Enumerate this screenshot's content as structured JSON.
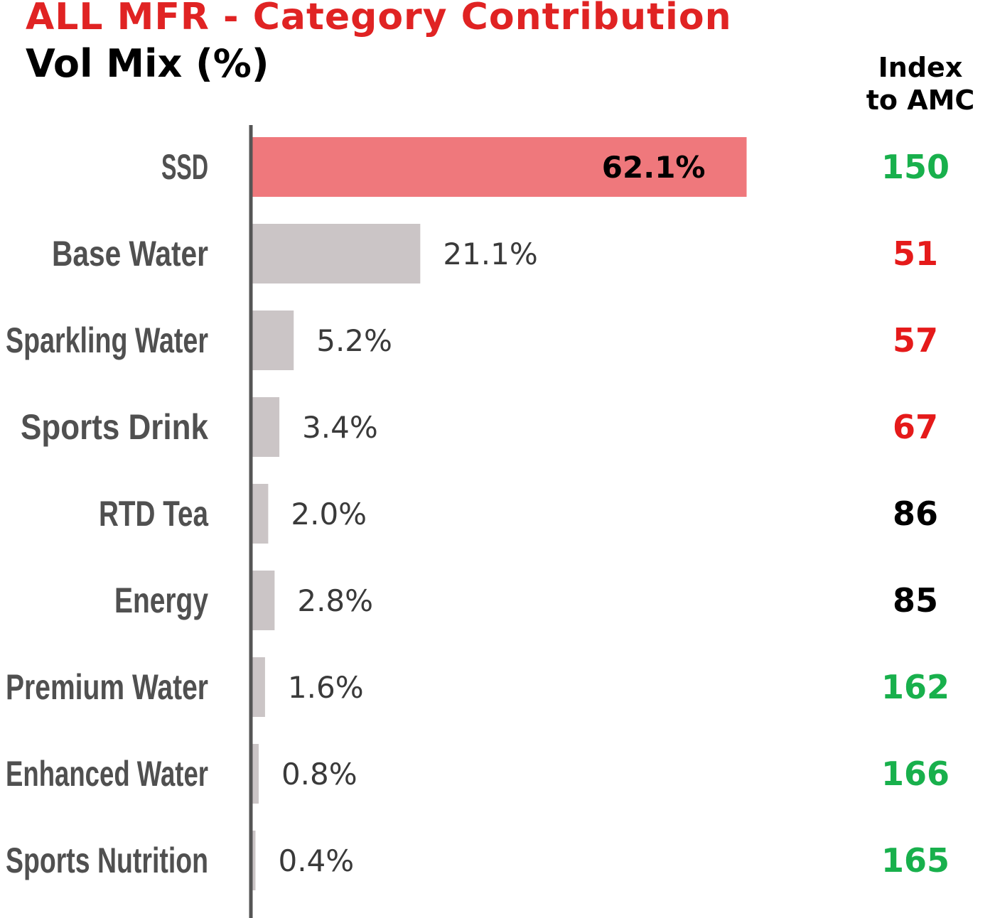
{
  "title": "ALL MFR - Category Contribution",
  "subtitle": "Vol Mix (%)",
  "index_header": {
    "line1": "Index",
    "line2": "to AMC"
  },
  "colors": {
    "highlight_bar": "#ef787c",
    "bar": "#cbc5c6",
    "axis": "#555555",
    "index_high": "#18b04c",
    "index_low": "#e51a1a",
    "index_neutral": "#000000"
  },
  "chart_data": {
    "type": "bar",
    "orientation": "horizontal",
    "title": "ALL MFR - Category Contribution",
    "subtitle": "Vol Mix (%)",
    "categories": [
      "SSD",
      "Base Water",
      "Sparkling Water",
      "Sports Drink",
      "RTD Tea",
      "Energy",
      "Premium Water",
      "Enhanced Water",
      "Sports Nutrition"
    ],
    "values": [
      62.1,
      21.1,
      5.2,
      3.4,
      2.0,
      2.8,
      1.6,
      0.8,
      0.4
    ],
    "value_labels": [
      "62.1%",
      "21.1%",
      "5.2%",
      "3.4%",
      "2.0%",
      "2.8%",
      "1.6%",
      "0.8%",
      "0.4%"
    ],
    "highlight": "SSD",
    "index_to_amc": [
      150,
      51,
      57,
      67,
      86,
      85,
      162,
      166,
      165
    ],
    "index_colors": [
      "green",
      "red",
      "red",
      "red",
      "black",
      "black",
      "green",
      "green",
      "green"
    ],
    "grid": false,
    "legend": "none"
  }
}
